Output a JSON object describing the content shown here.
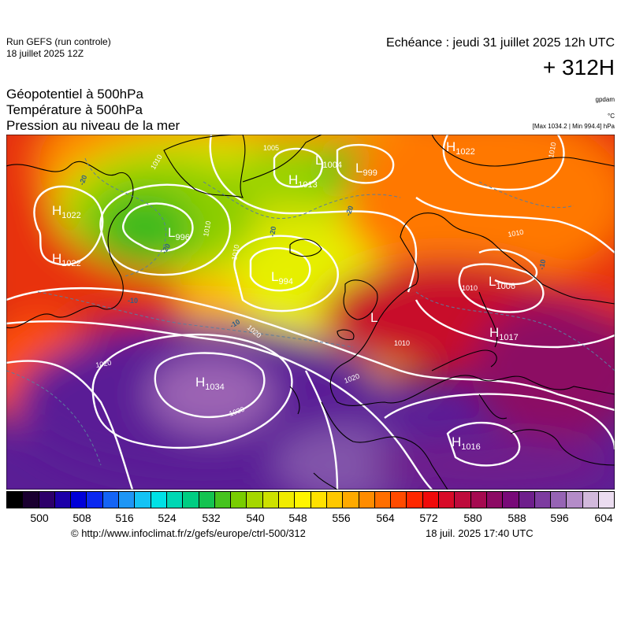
{
  "header": {
    "run_title": "Run GEFS (run controle)",
    "run_date": "18 juillet 2025 12Z",
    "echeance": "Echéance : jeudi 31 juillet 2025 12h UTC",
    "lead_time": "+ 312H",
    "fields": [
      "Géopotentiel à 500hPa",
      "Température à 500hPa",
      "Pression au niveau de la mer"
    ],
    "units": [
      "gpdam",
      "°C",
      "[Max 1034.2 | Min 994.4] hPa"
    ]
  },
  "map": {
    "pressure_centers": [
      {
        "type": "H",
        "value": "1022"
      },
      {
        "type": "H",
        "value": "1022"
      },
      {
        "type": "L",
        "value": "996"
      },
      {
        "type": "H",
        "value": "1013"
      },
      {
        "type": "L",
        "value": "1004"
      },
      {
        "type": "L",
        "value": "999"
      },
      {
        "type": "H",
        "value": "1022"
      },
      {
        "type": "L",
        "value": "994"
      },
      {
        "type": "L",
        "value": "1006"
      },
      {
        "type": "H",
        "value": "1017"
      },
      {
        "type": "H",
        "value": "1034"
      },
      {
        "type": "H",
        "value": "1016"
      },
      {
        "type": "L",
        "value": ""
      }
    ],
    "isobar_labels": [
      "1005",
      "1010",
      "1010",
      "1010",
      "1010",
      "1010",
      "1020",
      "1020",
      "1020",
      "1030",
      "1010",
      "1010"
    ],
    "temperature_labels": [
      "-20",
      "-20",
      "-20",
      "-20",
      "-10",
      "-10",
      "-10"
    ]
  },
  "colorbar": {
    "colors": [
      "#000000",
      "#1a0030",
      "#2d006a",
      "#1c00a8",
      "#0000d8",
      "#0a28f0",
      "#1464f5",
      "#1e96f5",
      "#14c3f5",
      "#00e1e6",
      "#00d7b4",
      "#00cd82",
      "#14c350",
      "#46c31e",
      "#78cd00",
      "#a5d700",
      "#cde100",
      "#f0eb00",
      "#fff500",
      "#ffe100",
      "#ffc800",
      "#ffaa00",
      "#ff8c00",
      "#ff6e00",
      "#ff4b00",
      "#ff2800",
      "#f00a0a",
      "#d70a28",
      "#be0a3c",
      "#a50a50",
      "#8c0a64",
      "#780a78",
      "#6e1e8c",
      "#7d3ca0",
      "#9664b4",
      "#b48cc8",
      "#d2b9dc",
      "#ebdcf0"
    ],
    "ticks": [
      "500",
      "508",
      "516",
      "524",
      "532",
      "540",
      "548",
      "556",
      "564",
      "572",
      "580",
      "588",
      "596",
      "604"
    ]
  },
  "footer": {
    "credit": "© http://www.infoclimat.fr/z/gefs/europe/ctrl-500/312",
    "timestamp": "18 juil. 2025 17:40 UTC"
  }
}
